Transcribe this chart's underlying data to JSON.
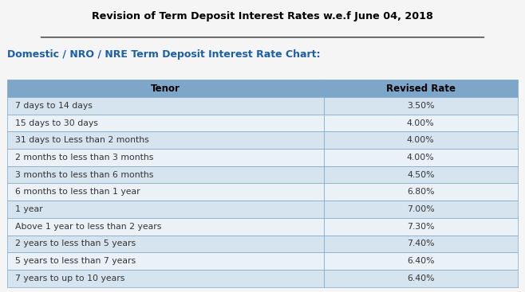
{
  "title": "Revision of Term Deposit Interest Rates w.e.f June 04, 2018",
  "subtitle": "Domestic / NRO / NRE Term Deposit Interest Rate Chart:",
  "col_headers": [
    "Tenor",
    "Revised Rate"
  ],
  "rows": [
    [
      "7 days to 14 days",
      "3.50%"
    ],
    [
      "15 days to 30 days",
      "4.00%"
    ],
    [
      "31 days to Less than 2 months",
      "4.00%"
    ],
    [
      "2 months to less than 3 months",
      "4.00%"
    ],
    [
      "3 months to less than 6 months",
      "4.50%"
    ],
    [
      "6 months to less than 1 year",
      "6.80%"
    ],
    [
      "1 year",
      "7.00%"
    ],
    [
      "Above 1 year to less than 2 years",
      "7.30%"
    ],
    [
      "2 years to less than 5 years",
      "7.40%"
    ],
    [
      "5 years to less than 7 years",
      "6.40%"
    ],
    [
      "7 years to up to 10 years",
      "6.40%"
    ]
  ],
  "header_bg": "#7da6c8",
  "row_bg_odd": "#d6e4f0",
  "row_bg_even": "#eaf2f8",
  "header_text_color": "#000000",
  "row_text_color": "#333333",
  "title_color": "#000000",
  "subtitle_color": "#1a5fa8",
  "border_color": "#7da6c8",
  "bg_color": "#f5f5f5",
  "col_split": 0.62
}
